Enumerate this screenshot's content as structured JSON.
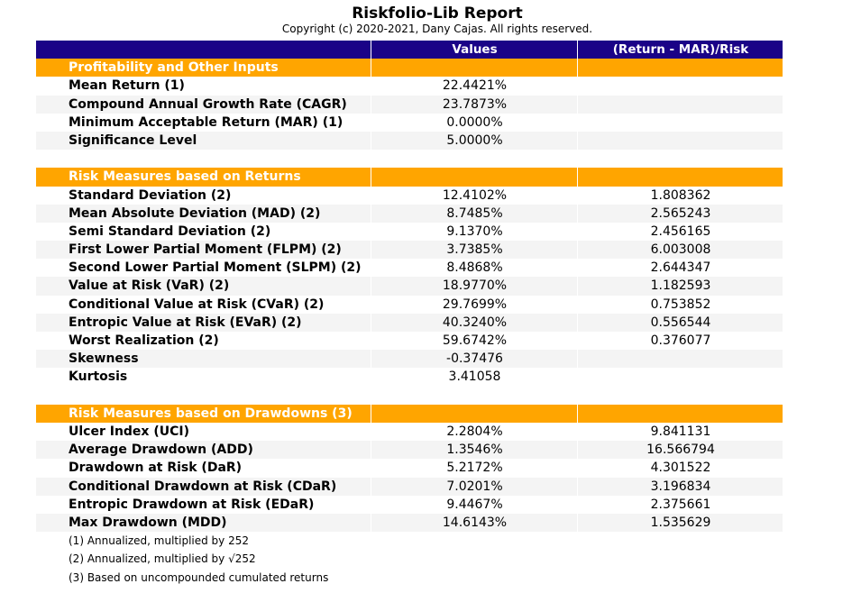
{
  "report": {
    "title": "Riskfolio-Lib Report",
    "copyright": "Copyright (c) 2020-2021, Dany Cajas. All rights reserved."
  },
  "table": {
    "headers": [
      "",
      "Values",
      "(Return - MAR)/Risk"
    ],
    "rows": [
      {
        "kind": "section",
        "label": "Profitability and Other Inputs",
        "value": "",
        "ratio": ""
      },
      {
        "kind": "data",
        "label": "Mean Return (1)",
        "value": "22.4421%",
        "ratio": ""
      },
      {
        "kind": "alt",
        "label": "Compound Annual Growth Rate (CAGR)",
        "value": "23.7873%",
        "ratio": ""
      },
      {
        "kind": "data",
        "label": "Minimum Acceptable Return (MAR) (1)",
        "value": "0.0000%",
        "ratio": ""
      },
      {
        "kind": "alt",
        "label": "Significance Level",
        "value": "5.0000%",
        "ratio": ""
      },
      {
        "kind": "blank",
        "label": "",
        "value": "",
        "ratio": ""
      },
      {
        "kind": "section",
        "label": "Risk Measures based on Returns",
        "value": "",
        "ratio": ""
      },
      {
        "kind": "data",
        "label": "Standard Deviation (2)",
        "value": "12.4102%",
        "ratio": "1.808362"
      },
      {
        "kind": "alt",
        "label": "Mean Absolute Deviation (MAD) (2)",
        "value": "8.7485%",
        "ratio": "2.565243"
      },
      {
        "kind": "data",
        "label": "Semi Standard Deviation (2)",
        "value": "9.1370%",
        "ratio": "2.456165"
      },
      {
        "kind": "alt",
        "label": "First Lower Partial Moment (FLPM) (2)",
        "value": "3.7385%",
        "ratio": "6.003008"
      },
      {
        "kind": "data",
        "label": "Second Lower Partial Moment (SLPM) (2)",
        "value": "8.4868%",
        "ratio": "2.644347"
      },
      {
        "kind": "alt",
        "label": "Value at Risk (VaR) (2)",
        "value": "18.9770%",
        "ratio": "1.182593"
      },
      {
        "kind": "data",
        "label": "Conditional Value at Risk (CVaR) (2)",
        "value": "29.7699%",
        "ratio": "0.753852"
      },
      {
        "kind": "alt",
        "label": "Entropic Value at Risk (EVaR) (2)",
        "value": "40.3240%",
        "ratio": "0.556544"
      },
      {
        "kind": "data",
        "label": "Worst Realization (2)",
        "value": "59.6742%",
        "ratio": "0.376077"
      },
      {
        "kind": "alt",
        "label": "Skewness",
        "value": "-0.37476",
        "ratio": ""
      },
      {
        "kind": "data",
        "label": "Kurtosis",
        "value": "3.41058",
        "ratio": ""
      },
      {
        "kind": "blank",
        "label": "",
        "value": "",
        "ratio": ""
      },
      {
        "kind": "section",
        "label": "Risk Measures based on Drawdowns (3)",
        "value": "",
        "ratio": ""
      },
      {
        "kind": "data",
        "label": "Ulcer Index (UCI)",
        "value": "2.2804%",
        "ratio": "9.841131"
      },
      {
        "kind": "alt",
        "label": "Average Drawdown (ADD)",
        "value": "1.3546%",
        "ratio": "16.566794"
      },
      {
        "kind": "data",
        "label": "Drawdown at Risk (DaR)",
        "value": "5.2172%",
        "ratio": "4.301522"
      },
      {
        "kind": "alt",
        "label": "Conditional Drawdown at Risk (CDaR)",
        "value": "7.0201%",
        "ratio": "3.196834"
      },
      {
        "kind": "data",
        "label": "Entropic Drawdown at Risk (EDaR)",
        "value": "9.4467%",
        "ratio": "2.375661"
      },
      {
        "kind": "alt",
        "label": "Max Drawdown (MDD)",
        "value": "14.6143%",
        "ratio": "1.535629"
      }
    ]
  },
  "notes": [
    "(1) Annualized, multiplied by 252",
    "(2) Annualized, multiplied by √252",
    "(3) Based on uncompounded cumulated returns"
  ],
  "colors": {
    "header_bg": "#1a0387",
    "section_bg": "#ffa500",
    "alt_row_bg": "#f4f4f4"
  }
}
